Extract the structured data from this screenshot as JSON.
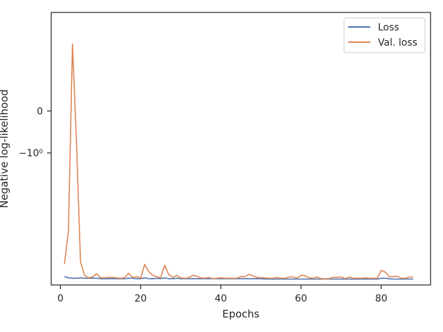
{
  "chart_data": {
    "type": "line",
    "title": "",
    "xlabel": "Epochs",
    "ylabel": "Negative log-likelihood",
    "xlim": [
      -2.3,
      92.3
    ],
    "x_ticks": [
      0,
      20,
      40,
      60,
      80
    ],
    "y_ticks": [
      {
        "value": 0,
        "label": "0"
      },
      {
        "value": -1,
        "label": "−10⁰"
      }
    ],
    "y_scale": "symlog",
    "grid": false,
    "legend": {
      "position": "top-right",
      "entries": [
        "Loss",
        "Val. loss"
      ]
    },
    "x": [
      1,
      2,
      3,
      4,
      5,
      6,
      7,
      8,
      9,
      10,
      11,
      12,
      13,
      14,
      15,
      16,
      17,
      18,
      19,
      20,
      21,
      22,
      23,
      24,
      25,
      26,
      27,
      28,
      29,
      30,
      31,
      32,
      33,
      34,
      35,
      36,
      37,
      38,
      39,
      40,
      41,
      42,
      43,
      44,
      45,
      46,
      47,
      48,
      49,
      50,
      51,
      52,
      53,
      54,
      55,
      56,
      57,
      58,
      59,
      60,
      61,
      62,
      63,
      64,
      65,
      66,
      67,
      68,
      69,
      70,
      71,
      72,
      73,
      74,
      75,
      76,
      77,
      78,
      79,
      80,
      81,
      82,
      83,
      84,
      85,
      86,
      87,
      88
    ],
    "series": [
      {
        "name": "Loss",
        "color": "#4c72b0",
        "values": [
          -3.95,
          -3.98,
          -3.99,
          -3.99,
          -3.98,
          -3.99,
          -3.99,
          -3.99,
          -3.99,
          -4.0,
          -4.0,
          -4.0,
          -4.0,
          -4.0,
          -4.0,
          -4.0,
          -3.99,
          -3.99,
          -4.0,
          -4.0,
          -3.98,
          -4.0,
          -4.0,
          -3.99,
          -4.0,
          -3.98,
          -4.0,
          -4.0,
          -3.99,
          -4.0,
          -4.0,
          -4.0,
          -4.0,
          -4.0,
          -4.0,
          -4.0,
          -4.0,
          -4.0,
          -4.0,
          -4.0,
          -4.0,
          -4.0,
          -4.0,
          -4.0,
          -4.0,
          -4.0,
          -4.0,
          -4.0,
          -4.0,
          -4.0,
          -4.01,
          -4.01,
          -4.01,
          -4.01,
          -4.01,
          -4.01,
          -4.01,
          -4.01,
          -4.01,
          -4.01,
          -4.01,
          -4.01,
          -4.01,
          -4.01,
          -4.01,
          -4.01,
          -4.01,
          -4.01,
          -4.01,
          -4.01,
          -4.01,
          -4.01,
          -4.01,
          -4.01,
          -4.01,
          -4.01,
          -4.01,
          -4.01,
          -4.01,
          -3.99,
          -3.99,
          -4.0,
          -4.01,
          -4.01,
          -4.01,
          -4.01,
          -4.01,
          -4.01
        ]
      },
      {
        "name": "Val. loss",
        "color": "#dd8452",
        "values": [
          -3.65,
          -2.85,
          1.6,
          -0.75,
          -3.6,
          -3.92,
          -3.98,
          -3.96,
          -3.88,
          -3.98,
          -3.98,
          -3.97,
          -3.97,
          -3.98,
          -3.99,
          -3.98,
          -3.87,
          -3.97,
          -3.95,
          -3.99,
          -3.66,
          -3.83,
          -3.92,
          -3.95,
          -3.98,
          -3.68,
          -3.9,
          -3.97,
          -3.92,
          -3.98,
          -3.99,
          -3.98,
          -3.92,
          -3.94,
          -3.98,
          -3.99,
          -3.97,
          -4.0,
          -3.99,
          -3.98,
          -3.99,
          -3.99,
          -3.99,
          -3.99,
          -3.95,
          -3.95,
          -3.9,
          -3.93,
          -3.97,
          -3.98,
          -3.98,
          -3.99,
          -3.99,
          -3.97,
          -3.99,
          -3.99,
          -3.96,
          -3.96,
          -3.99,
          -3.92,
          -3.93,
          -3.98,
          -3.99,
          -3.96,
          -4.0,
          -4.0,
          -4.0,
          -3.97,
          -3.97,
          -3.96,
          -4.0,
          -3.96,
          -3.99,
          -3.99,
          -3.99,
          -3.98,
          -3.99,
          -3.99,
          -3.99,
          -3.8,
          -3.84,
          -3.95,
          -3.95,
          -3.94,
          -3.99,
          -3.99,
          -3.96,
          -3.96
        ]
      }
    ]
  }
}
